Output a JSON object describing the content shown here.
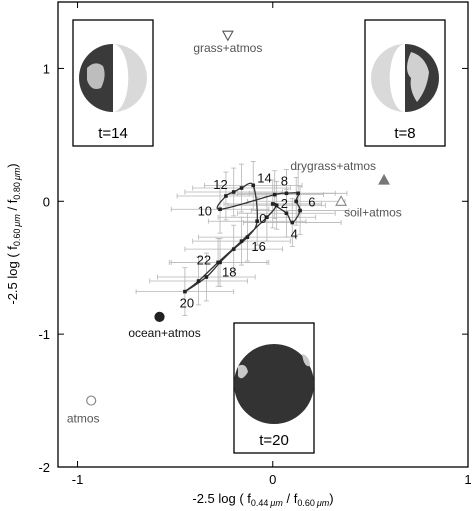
{
  "chart_data": {
    "type": "scatter",
    "title": "",
    "xlabel_parts": {
      "pre": "-2.5 log ( f",
      "sub1": "0.44",
      "unit1": "μm",
      "mid": " / f",
      "sub2": "0.60",
      "unit2": "μm",
      "post": ")"
    },
    "ylabel_parts": {
      "pre": "-2.5 log ( f",
      "sub1": "0.60",
      "unit1": "μm",
      "mid": " / f",
      "sub2": "0.80",
      "unit2": "μm",
      "post": ")"
    },
    "xlim": [
      -1.1,
      1.0
    ],
    "ylim": [
      -2.0,
      1.5
    ],
    "x_ticks": [
      {
        "value": -1,
        "label": "-1"
      },
      {
        "value": 0,
        "label": "0"
      },
      {
        "value": 1,
        "label": "1"
      }
    ],
    "y_ticks": [
      {
        "value": -2,
        "label": "-2"
      },
      {
        "value": -1,
        "label": "-1"
      },
      {
        "value": 0,
        "label": "0"
      },
      {
        "value": 1,
        "label": "1"
      }
    ],
    "grid": false,
    "references": [
      {
        "label": "grass+atmos",
        "x": -0.23,
        "y": 1.25,
        "marker": "triangle-down",
        "filled": false,
        "color": "#555555"
      },
      {
        "label": "drygrass+atmos",
        "x": 0.57,
        "y": 0.16,
        "marker": "triangle-up",
        "filled": true,
        "color": "#777777"
      },
      {
        "label": "soil+atmos",
        "x": 0.35,
        "y": 0.0,
        "marker": "triangle-up",
        "filled": false,
        "color": "#888888"
      },
      {
        "label": "ocean+atmos",
        "x": -0.58,
        "y": -0.87,
        "marker": "circle",
        "filled": true,
        "color": "#222222"
      },
      {
        "label": "atmos",
        "x": -0.93,
        "y": -1.5,
        "marker": "circle",
        "filled": false,
        "color": "#888888"
      }
    ],
    "time_points": [
      {
        "t": 0,
        "x": -0.03,
        "y": -0.12,
        "label": "0"
      },
      {
        "t": 1,
        "x": 0.02,
        "y": -0.03,
        "label": ""
      },
      {
        "t": 2,
        "x": 0.0,
        "y": -0.02,
        "label": "2"
      },
      {
        "t": 3,
        "x": 0.07,
        "y": -0.09,
        "label": ""
      },
      {
        "t": 4,
        "x": 0.1,
        "y": -0.16,
        "label": "4"
      },
      {
        "t": 5,
        "x": 0.14,
        "y": -0.07,
        "label": ""
      },
      {
        "t": 6,
        "x": 0.12,
        "y": 0.0,
        "label": "6"
      },
      {
        "t": 7,
        "x": 0.13,
        "y": 0.06,
        "label": ""
      },
      {
        "t": 8,
        "x": 0.07,
        "y": 0.06,
        "label": "8"
      },
      {
        "t": 9,
        "x": 0.01,
        "y": 0.05,
        "label": ""
      },
      {
        "t": 10,
        "x": -0.27,
        "y": -0.06,
        "label": "10"
      },
      {
        "t": 11,
        "x": -0.24,
        "y": 0.04,
        "label": ""
      },
      {
        "t": 12,
        "x": -0.2,
        "y": 0.07,
        "label": "12"
      },
      {
        "t": 13,
        "x": -0.16,
        "y": 0.1,
        "label": ""
      },
      {
        "t": 14,
        "x": -0.1,
        "y": 0.12,
        "label": "14"
      },
      {
        "t": 15,
        "x": -0.08,
        "y": -0.15,
        "label": ""
      },
      {
        "t": 16,
        "x": -0.13,
        "y": -0.27,
        "label": "16"
      },
      {
        "t": 17,
        "x": -0.2,
        "y": -0.36,
        "label": ""
      },
      {
        "t": 18,
        "x": -0.27,
        "y": -0.46,
        "label": "18"
      },
      {
        "t": 19,
        "x": -0.34,
        "y": -0.57,
        "label": ""
      },
      {
        "t": 20,
        "x": -0.45,
        "y": -0.68,
        "label": "20"
      },
      {
        "t": 21,
        "x": -0.38,
        "y": -0.6,
        "label": ""
      },
      {
        "t": 22,
        "x": -0.28,
        "y": -0.46,
        "label": "22"
      },
      {
        "t": 23,
        "x": -0.16,
        "y": -0.3,
        "label": ""
      }
    ],
    "error_bar": {
      "x": 0.25,
      "y": 0.18
    },
    "insets": [
      {
        "label": "t=14",
        "orientation": "left"
      },
      {
        "label": "t=8",
        "orientation": "right"
      },
      {
        "label": "t=20",
        "orientation": "full"
      }
    ]
  }
}
